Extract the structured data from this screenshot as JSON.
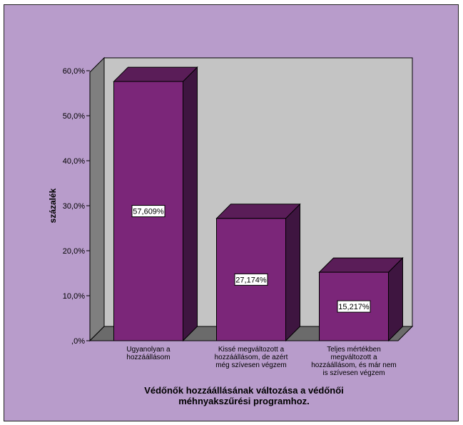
{
  "chart_data": {
    "type": "bar",
    "categories": [
      [
        "Ugyanolyan a",
        "hozzáállásom"
      ],
      [
        "Kissé megváltozott a",
        "hozzáállásom, de azért",
        "még szívesen végzem"
      ],
      [
        "Teljes mértékben",
        "megváltozott a",
        "hozzáállásom, és már nem",
        "is szívesen végzem"
      ]
    ],
    "values": [
      57.609,
      27.174,
      15.217
    ],
    "data_labels": [
      "57,609%",
      "27,174%",
      "15,217%"
    ],
    "ylabel": "százalék",
    "xlabel": [
      "Védőnők hozzáállásának változása a védőnői",
      "méhnyakszűrési programhoz."
    ],
    "ylim": [
      0,
      60
    ],
    "yticks": [
      {
        "value": 0,
        "label": ",0%"
      },
      {
        "value": 10,
        "label": "10,0%"
      },
      {
        "value": 20,
        "label": "20,0%"
      },
      {
        "value": 30,
        "label": "30,0%"
      },
      {
        "value": 40,
        "label": "40,0%"
      },
      {
        "value": 50,
        "label": "50,0%"
      },
      {
        "value": 60,
        "label": "60,0%"
      }
    ],
    "style": "3d-bar",
    "colors": {
      "bar_front": "#7b2679",
      "bar_top": "#5a1d58",
      "bar_side": "#3e1540",
      "plot_back": "#c4c4c4",
      "wall_left": "#7f7f7f",
      "floor": "#6b6b6b",
      "background": "#b89ccb"
    }
  }
}
